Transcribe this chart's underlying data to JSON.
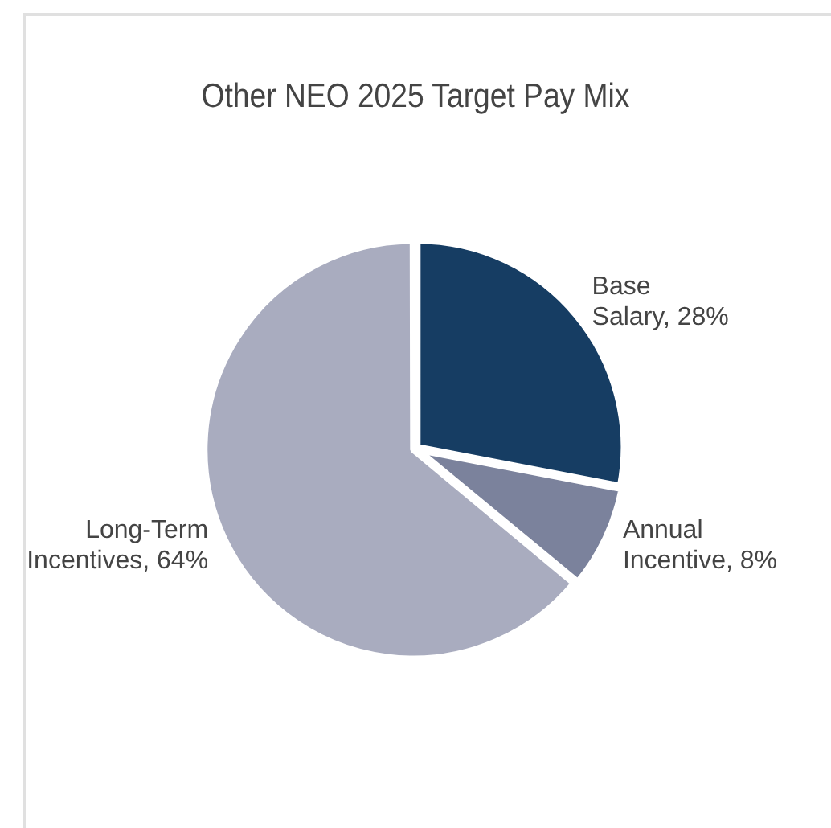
{
  "chart_data": {
    "type": "pie",
    "title": "Other NEO 2025 Target Pay Mix",
    "categories": [
      "Base Salary",
      "Annual Incentive",
      "Long-Term Incentives"
    ],
    "values": [
      28,
      8,
      64
    ],
    "colors": [
      "#163d63",
      "#7b829c",
      "#a9acbf"
    ],
    "value_labels": [
      "28%",
      "8%",
      "64%"
    ],
    "legend": false
  }
}
